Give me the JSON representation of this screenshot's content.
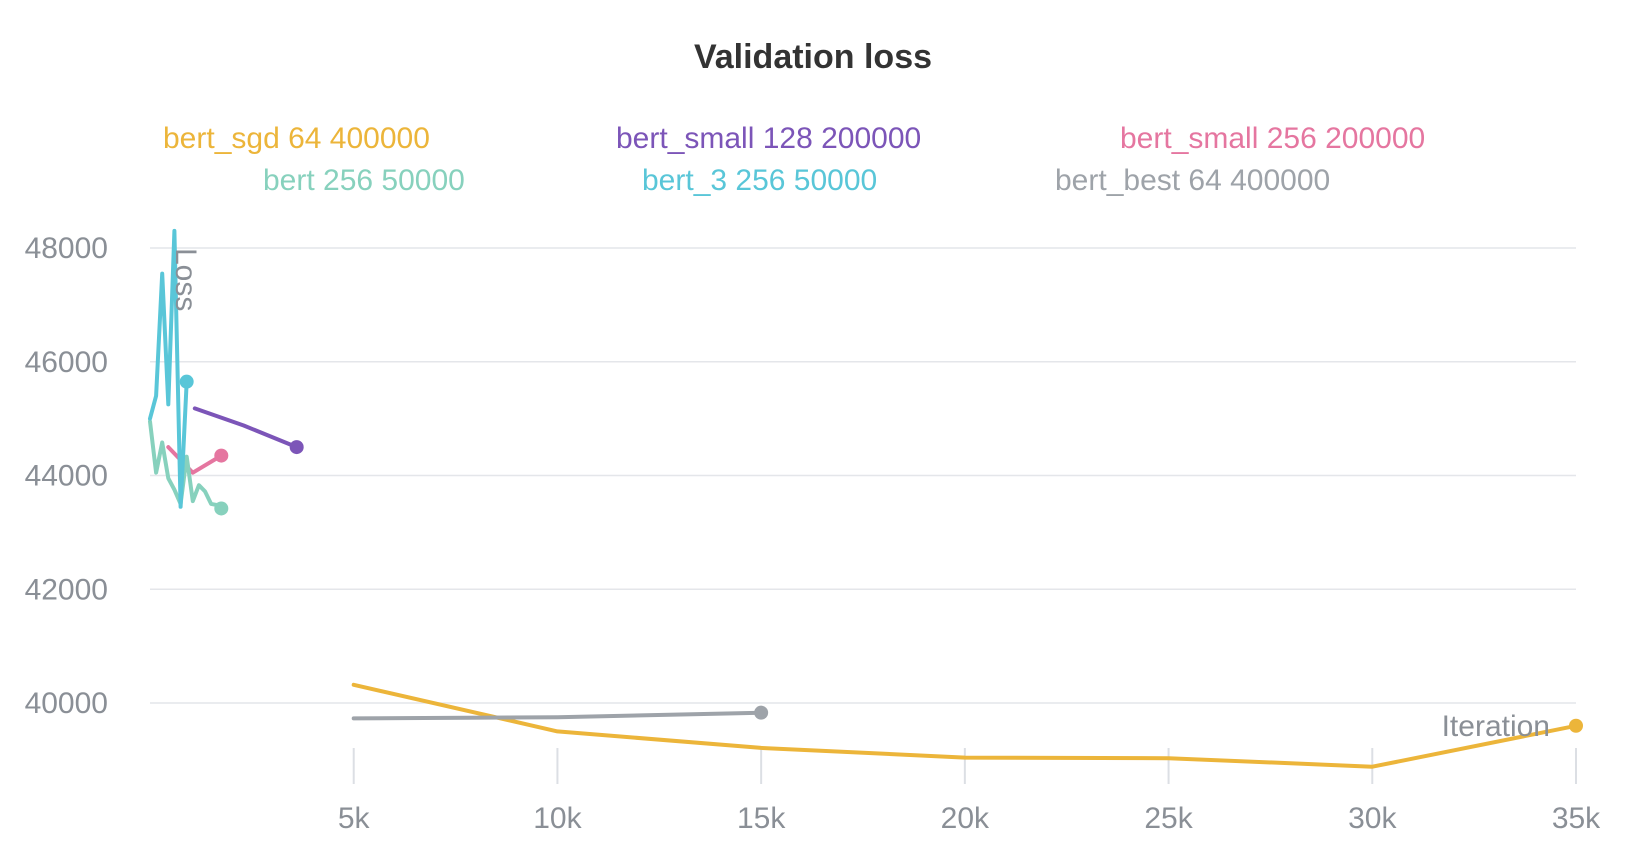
{
  "chart_data": {
    "type": "line",
    "title": "Validation loss",
    "xlabel": "Iteration",
    "ylabel": "Loss",
    "xlim": [
      0,
      35000
    ],
    "ylim": [
      38200,
      48400
    ],
    "x_ticks": [
      5000,
      10000,
      15000,
      20000,
      25000,
      30000,
      35000
    ],
    "x_tick_labels": [
      "5k",
      "10k",
      "15k",
      "20k",
      "25k",
      "30k",
      "35k"
    ],
    "y_ticks": [
      40000,
      42000,
      44000,
      46000,
      48000
    ],
    "y_tick_labels": [
      "40000",
      "42000",
      "44000",
      "46000",
      "48000"
    ],
    "grid": "horizontal",
    "legend_position": "top",
    "series": [
      {
        "name": "bert_sgd 64 400000",
        "color": "#ecb53a",
        "x": [
          5000,
          10000,
          15000,
          20000,
          25000,
          30000,
          35000
        ],
        "y": [
          40320,
          39500,
          39210,
          39040,
          39030,
          38880,
          39600
        ]
      },
      {
        "name": "bert_small 128 200000",
        "color": "#7c55b8",
        "x": [
          1100,
          2300,
          3600
        ],
        "y": [
          45180,
          44880,
          44500
        ]
      },
      {
        "name": "bert_small 256 200000",
        "color": "#e576a0",
        "x": [
          450,
          1050,
          1750
        ],
        "y": [
          44500,
          44050,
          44350
        ]
      },
      {
        "name": "bert 256 50000",
        "color": "#87d1bd",
        "x": [
          0,
          150,
          300,
          450,
          600,
          750,
          900,
          1050,
          1200,
          1350,
          1500,
          1650,
          1750
        ],
        "y": [
          44950,
          44050,
          44580,
          43950,
          43750,
          43500,
          44330,
          43550,
          43830,
          43720,
          43500,
          43480,
          43420
        ]
      },
      {
        "name": "bert_3 256 50000",
        "color": "#59c6d8",
        "x": [
          0,
          150,
          300,
          450,
          600,
          750,
          900
        ],
        "y": [
          45000,
          45400,
          47550,
          45250,
          48300,
          43450,
          45650
        ]
      },
      {
        "name": "bert_best 64 400000",
        "color": "#9ea3a9",
        "x": [
          5000,
          10000,
          15000
        ],
        "y": [
          39730,
          39750,
          39830
        ]
      }
    ]
  }
}
